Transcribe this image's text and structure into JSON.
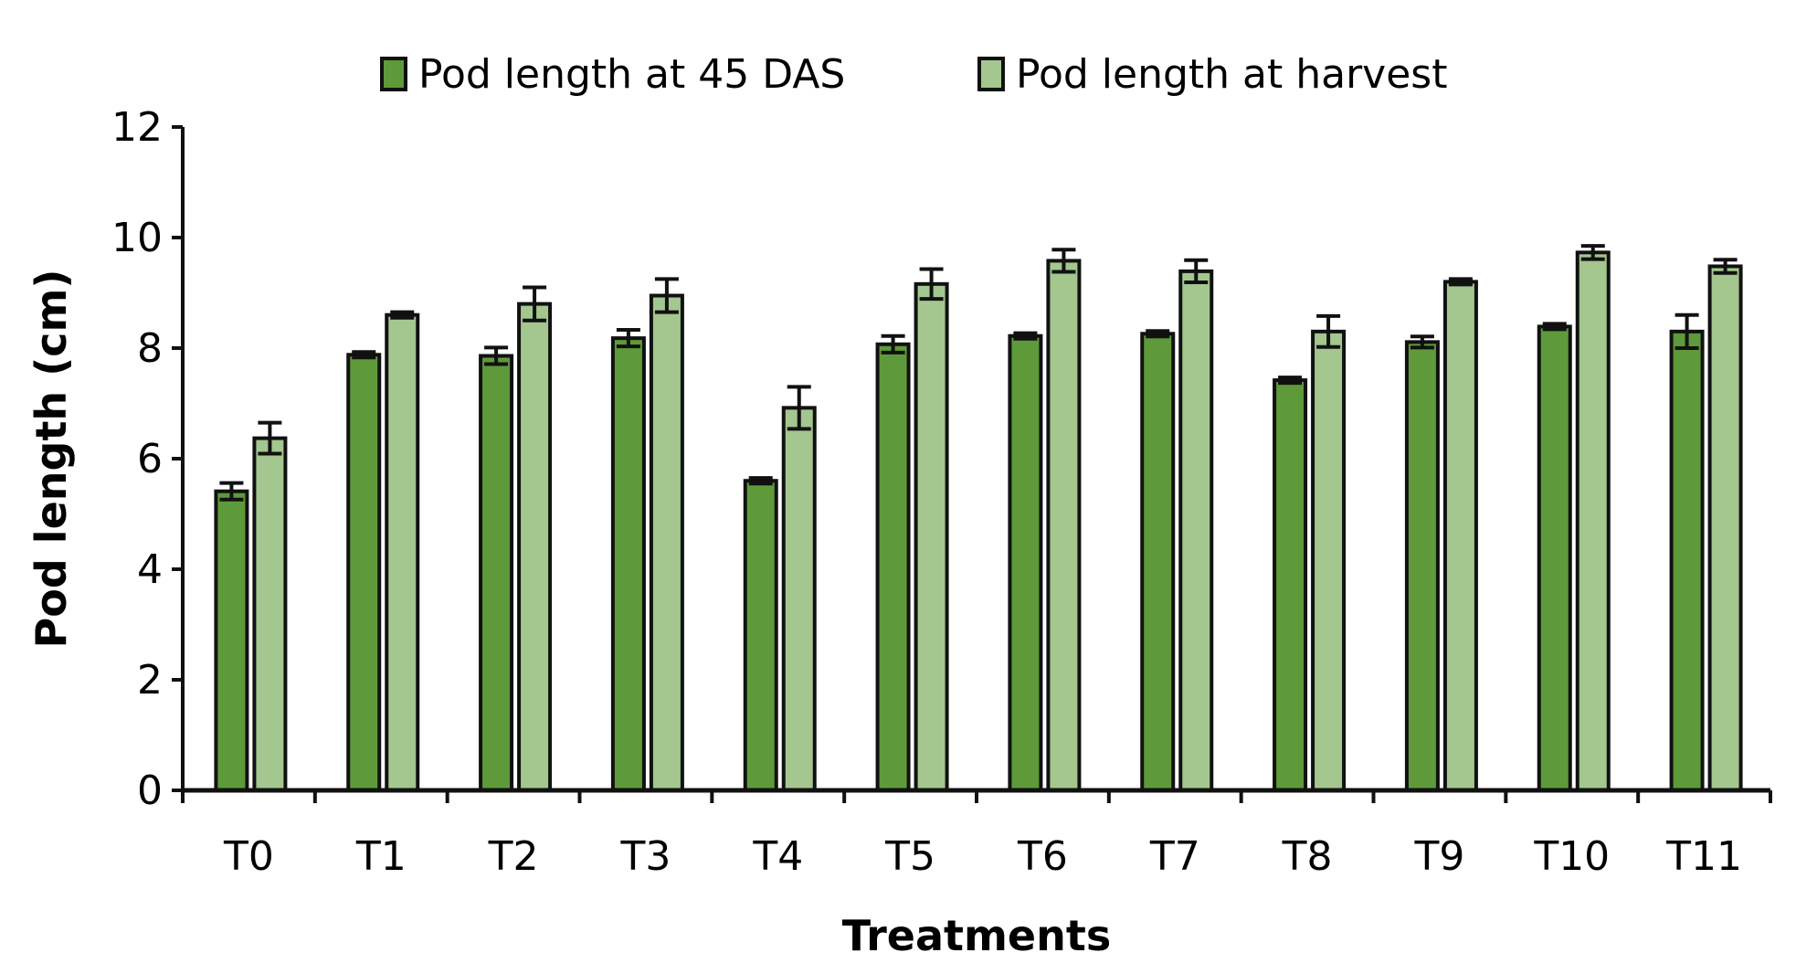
{
  "chart_data": {
    "type": "bar",
    "title": "",
    "xlabel": "Treatments",
    "ylabel": "Pod length (cm)",
    "ylim": [
      0,
      12
    ],
    "yticks": [
      0,
      2,
      4,
      6,
      8,
      10,
      12
    ],
    "grid": false,
    "legend_position": "top-center",
    "categories": [
      "T0",
      "T1",
      "T2",
      "T3",
      "T4",
      "T5",
      "T6",
      "T7",
      "T8",
      "T9",
      "T10",
      "T11"
    ],
    "series": [
      {
        "name": "Pod length at 45 DAS",
        "color": "#5f9a3a",
        "values": [
          5.41,
          7.88,
          7.86,
          8.18,
          5.6,
          8.07,
          8.22,
          8.26,
          7.42,
          8.11,
          8.39,
          8.3
        ],
        "errors": [
          0.15,
          0.05,
          0.15,
          0.15,
          0.05,
          0.15,
          0.05,
          0.05,
          0.05,
          0.1,
          0.05,
          0.3
        ]
      },
      {
        "name": "Pod length at harvest",
        "color": "#a3c78f",
        "values": [
          6.37,
          8.6,
          8.8,
          8.95,
          6.92,
          9.16,
          9.58,
          9.39,
          8.3,
          9.2,
          9.73,
          9.48
        ],
        "errors": [
          0.28,
          0.05,
          0.3,
          0.3,
          0.38,
          0.27,
          0.2,
          0.2,
          0.28,
          0.05,
          0.12,
          0.12
        ]
      }
    ]
  }
}
